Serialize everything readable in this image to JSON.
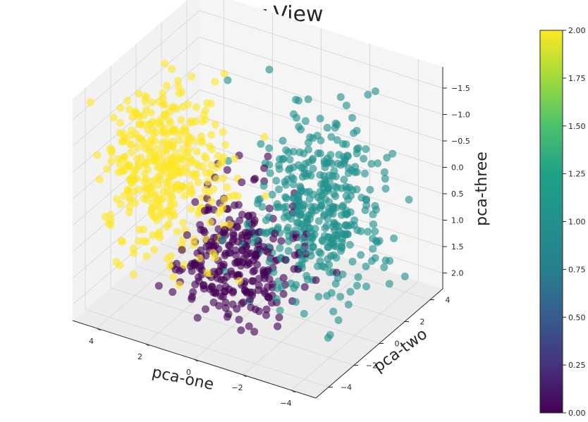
{
  "chart_data": {
    "type": "scatter",
    "projection": "3d",
    "title": "Cluster View",
    "xlabel": "pca-one",
    "ylabel": "pca-two",
    "zlabel": "pca-three",
    "x_ticks": [
      4,
      2,
      0,
      -2,
      -4
    ],
    "y_ticks": [
      -4,
      -2,
      0,
      2,
      4
    ],
    "z_ticks": [
      -1.5,
      -1.0,
      -0.5,
      0.0,
      0.5,
      1.0,
      1.5,
      2.0
    ],
    "x_tick_labels": [
      "4",
      "2",
      "0",
      "−2",
      "−4"
    ],
    "y_tick_labels": [
      "−4",
      "−2",
      "0",
      "2",
      "4"
    ],
    "z_tick_labels": [
      "−1.5",
      "−1.0",
      "−0.5",
      "0.0",
      "0.5",
      "1.0",
      "1.5",
      "2.0"
    ],
    "xlim": [
      -5,
      5
    ],
    "ylim": [
      -5,
      5
    ],
    "zlim": [
      2.3,
      -1.9
    ],
    "grid": true,
    "colormap": "viridis",
    "colorbar": {
      "range": [
        0.0,
        2.0
      ],
      "ticks": [
        0.0,
        0.25,
        0.5,
        0.75,
        1.0,
        1.25,
        1.5,
        1.75,
        2.0
      ],
      "tick_labels": [
        "0.00",
        "0.25",
        "0.50",
        "0.75",
        "1.00",
        "1.25",
        "1.50",
        "1.75",
        "2.00"
      ]
    },
    "series": [
      {
        "cluster_value": 2,
        "color": "#fde725",
        "centroid": [
          3.0,
          -1.5,
          -0.2
        ],
        "spread": [
          1.2,
          1.3,
          0.8
        ],
        "count": 420
      },
      {
        "cluster_value": 1,
        "color": "#21918c",
        "centroid": [
          -1.8,
          1.5,
          0.5
        ],
        "spread": [
          1.2,
          1.4,
          0.8
        ],
        "count": 420
      },
      {
        "cluster_value": 0,
        "color": "#440154",
        "centroid": [
          0.6,
          -0.5,
          1.5
        ],
        "spread": [
          1.1,
          1.2,
          0.7
        ],
        "count": 320
      }
    ]
  }
}
